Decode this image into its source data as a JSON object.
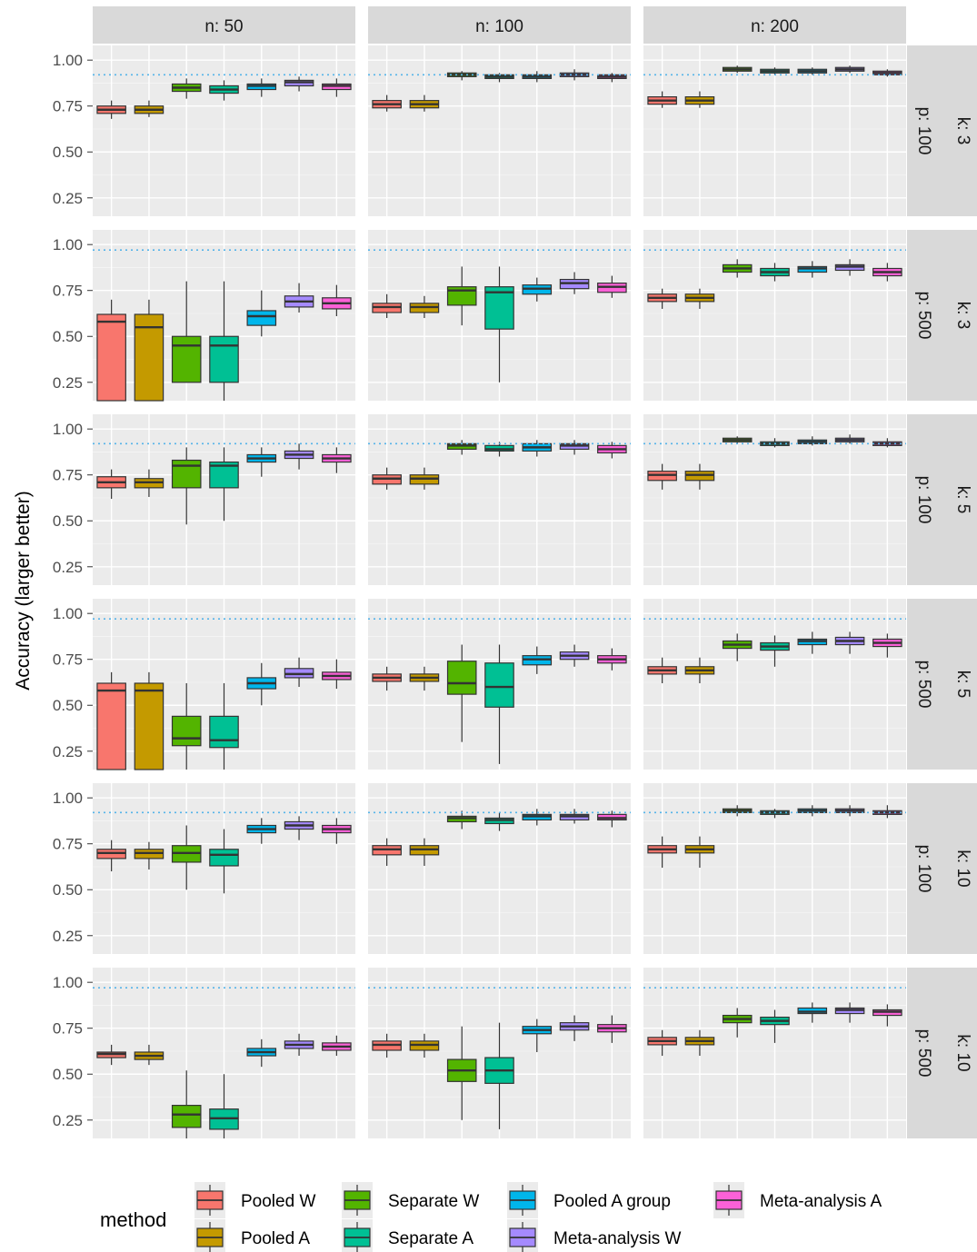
{
  "chart_data": {
    "type": "boxplot",
    "ylabel": "Accuracy (larger better)",
    "ylim": [
      0.15,
      1.08
    ],
    "yticks": [
      0.25,
      0.5,
      0.75,
      1.0
    ],
    "ytick_labels": [
      "0.25",
      "0.50",
      "0.75",
      "1.00"
    ],
    "grid": true,
    "col_facet": {
      "labels": [
        "n: 50",
        "n: 100",
        "n: 200"
      ]
    },
    "row_facet": {
      "rows": [
        {
          "p": "p: 100",
          "k": "k: 3"
        },
        {
          "p": "p: 500",
          "k": "k: 3"
        },
        {
          "p": "p: 100",
          "k": "k: 5"
        },
        {
          "p": "p: 500",
          "k": "k: 5"
        },
        {
          "p": "p: 100",
          "k": "k: 10"
        },
        {
          "p": "p: 500",
          "k": "k: 10"
        }
      ]
    },
    "reference_lines": [
      0.92,
      0.97,
      0.92,
      0.97,
      0.92,
      0.97
    ],
    "methods": [
      {
        "name": "Pooled W",
        "color": "#F8766D"
      },
      {
        "name": "Pooled A",
        "color": "#C49A00"
      },
      {
        "name": "Separate W",
        "color": "#53B400"
      },
      {
        "name": "Separate A",
        "color": "#00C094"
      },
      {
        "name": "Pooled A group",
        "color": "#00B6EB"
      },
      {
        "name": "Meta-analysis W",
        "color": "#A58AFF"
      },
      {
        "name": "Meta-analysis A",
        "color": "#FB61D7"
      }
    ],
    "legend": {
      "title": "method",
      "position": "bottom"
    },
    "panels": [
      [
        [
          [
            0.68,
            0.71,
            0.73,
            0.75,
            0.78
          ],
          [
            0.69,
            0.71,
            0.73,
            0.75,
            0.78
          ],
          [
            0.79,
            0.83,
            0.85,
            0.87,
            0.9
          ],
          [
            0.78,
            0.82,
            0.84,
            0.86,
            0.89
          ],
          [
            0.8,
            0.84,
            0.86,
            0.87,
            0.9
          ],
          [
            0.83,
            0.86,
            0.88,
            0.89,
            0.91
          ],
          [
            0.8,
            0.84,
            0.86,
            0.87,
            0.9
          ]
        ],
        [
          [
            0.72,
            0.74,
            0.76,
            0.78,
            0.81
          ],
          [
            0.72,
            0.74,
            0.76,
            0.78,
            0.81
          ],
          [
            0.89,
            0.91,
            0.92,
            0.93,
            0.94
          ],
          [
            0.88,
            0.9,
            0.91,
            0.92,
            0.93
          ],
          [
            0.88,
            0.9,
            0.91,
            0.92,
            0.94
          ],
          [
            0.89,
            0.91,
            0.92,
            0.93,
            0.95
          ],
          [
            0.88,
            0.9,
            0.91,
            0.92,
            0.93
          ]
        ],
        [
          [
            0.74,
            0.76,
            0.78,
            0.8,
            0.83
          ],
          [
            0.74,
            0.76,
            0.78,
            0.8,
            0.83
          ],
          [
            0.93,
            0.94,
            0.95,
            0.96,
            0.97
          ],
          [
            0.92,
            0.93,
            0.94,
            0.95,
            0.96
          ],
          [
            0.92,
            0.93,
            0.94,
            0.95,
            0.96
          ],
          [
            0.93,
            0.94,
            0.95,
            0.96,
            0.97
          ],
          [
            0.91,
            0.92,
            0.93,
            0.94,
            0.95
          ]
        ]
      ],
      [
        [
          [
            0.15,
            0.15,
            0.58,
            0.62,
            0.7
          ],
          [
            0.15,
            0.15,
            0.55,
            0.62,
            0.7
          ],
          [
            0.25,
            0.25,
            0.45,
            0.5,
            0.8
          ],
          [
            0.15,
            0.25,
            0.45,
            0.5,
            0.8
          ],
          [
            0.5,
            0.56,
            0.61,
            0.64,
            0.75
          ],
          [
            0.63,
            0.66,
            0.69,
            0.72,
            0.79
          ],
          [
            0.61,
            0.65,
            0.68,
            0.71,
            0.78
          ]
        ],
        [
          [
            0.6,
            0.63,
            0.66,
            0.68,
            0.73
          ],
          [
            0.6,
            0.63,
            0.66,
            0.68,
            0.72
          ],
          [
            0.56,
            0.67,
            0.75,
            0.77,
            0.88
          ],
          [
            0.25,
            0.54,
            0.74,
            0.77,
            0.88
          ],
          [
            0.69,
            0.73,
            0.76,
            0.78,
            0.82
          ],
          [
            0.73,
            0.76,
            0.79,
            0.81,
            0.85
          ],
          [
            0.71,
            0.74,
            0.77,
            0.79,
            0.83
          ]
        ],
        [
          [
            0.65,
            0.69,
            0.71,
            0.73,
            0.76
          ],
          [
            0.65,
            0.69,
            0.71,
            0.73,
            0.76
          ],
          [
            0.82,
            0.85,
            0.87,
            0.89,
            0.92
          ],
          [
            0.8,
            0.83,
            0.85,
            0.87,
            0.9
          ],
          [
            0.82,
            0.85,
            0.87,
            0.88,
            0.91
          ],
          [
            0.83,
            0.86,
            0.88,
            0.89,
            0.92
          ],
          [
            0.8,
            0.83,
            0.85,
            0.87,
            0.9
          ]
        ]
      ],
      [
        [
          [
            0.62,
            0.68,
            0.71,
            0.74,
            0.78
          ],
          [
            0.63,
            0.68,
            0.71,
            0.73,
            0.78
          ],
          [
            0.48,
            0.68,
            0.8,
            0.83,
            0.9
          ],
          [
            0.5,
            0.68,
            0.8,
            0.82,
            0.9
          ],
          [
            0.74,
            0.82,
            0.84,
            0.86,
            0.9
          ],
          [
            0.78,
            0.84,
            0.86,
            0.88,
            0.92
          ],
          [
            0.76,
            0.82,
            0.84,
            0.86,
            0.9
          ]
        ],
        [
          [
            0.67,
            0.7,
            0.73,
            0.75,
            0.79
          ],
          [
            0.67,
            0.7,
            0.73,
            0.75,
            0.79
          ],
          [
            0.86,
            0.89,
            0.91,
            0.92,
            0.94
          ],
          [
            0.85,
            0.88,
            0.89,
            0.91,
            0.93
          ],
          [
            0.85,
            0.88,
            0.9,
            0.92,
            0.94
          ],
          [
            0.86,
            0.89,
            0.91,
            0.92,
            0.94
          ],
          [
            0.84,
            0.87,
            0.89,
            0.91,
            0.93
          ]
        ],
        [
          [
            0.67,
            0.72,
            0.75,
            0.77,
            0.81
          ],
          [
            0.67,
            0.72,
            0.75,
            0.77,
            0.81
          ],
          [
            0.92,
            0.93,
            0.94,
            0.95,
            0.96
          ],
          [
            0.9,
            0.91,
            0.92,
            0.93,
            0.95
          ],
          [
            0.91,
            0.92,
            0.93,
            0.94,
            0.96
          ],
          [
            0.92,
            0.93,
            0.94,
            0.95,
            0.97
          ],
          [
            0.9,
            0.91,
            0.92,
            0.93,
            0.95
          ]
        ]
      ],
      [
        [
          [
            0.15,
            0.15,
            0.58,
            0.62,
            0.68
          ],
          [
            0.15,
            0.15,
            0.58,
            0.62,
            0.68
          ],
          [
            0.15,
            0.28,
            0.32,
            0.44,
            0.62
          ],
          [
            0.15,
            0.27,
            0.31,
            0.44,
            0.62
          ],
          [
            0.5,
            0.59,
            0.62,
            0.65,
            0.73
          ],
          [
            0.6,
            0.65,
            0.67,
            0.7,
            0.76
          ],
          [
            0.59,
            0.64,
            0.66,
            0.68,
            0.75
          ]
        ],
        [
          [
            0.58,
            0.63,
            0.65,
            0.67,
            0.71
          ],
          [
            0.58,
            0.63,
            0.65,
            0.67,
            0.71
          ],
          [
            0.3,
            0.56,
            0.62,
            0.74,
            0.83
          ],
          [
            0.18,
            0.49,
            0.6,
            0.73,
            0.83
          ],
          [
            0.67,
            0.72,
            0.75,
            0.77,
            0.82
          ],
          [
            0.71,
            0.75,
            0.77,
            0.79,
            0.83
          ],
          [
            0.69,
            0.73,
            0.75,
            0.77,
            0.81
          ]
        ],
        [
          [
            0.62,
            0.67,
            0.69,
            0.71,
            0.76
          ],
          [
            0.62,
            0.67,
            0.69,
            0.71,
            0.76
          ],
          [
            0.74,
            0.81,
            0.83,
            0.85,
            0.89
          ],
          [
            0.71,
            0.8,
            0.82,
            0.84,
            0.88
          ],
          [
            0.78,
            0.83,
            0.85,
            0.86,
            0.9
          ],
          [
            0.78,
            0.83,
            0.85,
            0.87,
            0.9
          ],
          [
            0.76,
            0.82,
            0.84,
            0.86,
            0.89
          ]
        ]
      ],
      [
        [
          [
            0.6,
            0.67,
            0.7,
            0.72,
            0.77
          ],
          [
            0.61,
            0.67,
            0.7,
            0.72,
            0.76
          ],
          [
            0.5,
            0.65,
            0.7,
            0.74,
            0.85
          ],
          [
            0.48,
            0.63,
            0.69,
            0.72,
            0.83
          ],
          [
            0.75,
            0.81,
            0.83,
            0.85,
            0.89
          ],
          [
            0.77,
            0.83,
            0.85,
            0.87,
            0.9
          ],
          [
            0.75,
            0.81,
            0.83,
            0.85,
            0.89
          ]
        ],
        [
          [
            0.63,
            0.69,
            0.72,
            0.74,
            0.78
          ],
          [
            0.63,
            0.69,
            0.72,
            0.74,
            0.78
          ],
          [
            0.83,
            0.87,
            0.89,
            0.9,
            0.93
          ],
          [
            0.82,
            0.86,
            0.88,
            0.89,
            0.92
          ],
          [
            0.85,
            0.88,
            0.9,
            0.91,
            0.94
          ],
          [
            0.86,
            0.88,
            0.9,
            0.91,
            0.94
          ],
          [
            0.84,
            0.88,
            0.89,
            0.91,
            0.93
          ]
        ],
        [
          [
            0.62,
            0.7,
            0.72,
            0.74,
            0.79
          ],
          [
            0.62,
            0.7,
            0.72,
            0.74,
            0.79
          ],
          [
            0.9,
            0.92,
            0.93,
            0.94,
            0.96
          ],
          [
            0.89,
            0.91,
            0.92,
            0.93,
            0.94
          ],
          [
            0.9,
            0.92,
            0.93,
            0.94,
            0.96
          ],
          [
            0.9,
            0.92,
            0.93,
            0.94,
            0.96
          ],
          [
            0.89,
            0.91,
            0.92,
            0.93,
            0.96
          ]
        ]
      ],
      [
        [
          [
            0.55,
            0.59,
            0.61,
            0.62,
            0.66
          ],
          [
            0.55,
            0.58,
            0.6,
            0.62,
            0.66
          ],
          [
            0.15,
            0.21,
            0.28,
            0.33,
            0.52
          ],
          [
            0.15,
            0.2,
            0.26,
            0.31,
            0.5
          ],
          [
            0.54,
            0.6,
            0.62,
            0.64,
            0.69
          ],
          [
            0.6,
            0.64,
            0.66,
            0.68,
            0.72
          ],
          [
            0.6,
            0.63,
            0.65,
            0.67,
            0.71
          ]
        ],
        [
          [
            0.59,
            0.63,
            0.66,
            0.68,
            0.72
          ],
          [
            0.59,
            0.63,
            0.66,
            0.68,
            0.72
          ],
          [
            0.25,
            0.46,
            0.52,
            0.58,
            0.76
          ],
          [
            0.2,
            0.45,
            0.52,
            0.59,
            0.78
          ],
          [
            0.62,
            0.72,
            0.74,
            0.76,
            0.8
          ],
          [
            0.68,
            0.74,
            0.76,
            0.78,
            0.82
          ],
          [
            0.67,
            0.73,
            0.75,
            0.77,
            0.82
          ]
        ],
        [
          [
            0.6,
            0.66,
            0.68,
            0.7,
            0.74
          ],
          [
            0.6,
            0.66,
            0.68,
            0.7,
            0.74
          ],
          [
            0.7,
            0.78,
            0.8,
            0.82,
            0.86
          ],
          [
            0.67,
            0.77,
            0.79,
            0.81,
            0.85
          ],
          [
            0.78,
            0.83,
            0.84,
            0.86,
            0.89
          ],
          [
            0.78,
            0.83,
            0.85,
            0.86,
            0.89
          ],
          [
            0.76,
            0.82,
            0.84,
            0.85,
            0.88
          ]
        ]
      ]
    ]
  }
}
